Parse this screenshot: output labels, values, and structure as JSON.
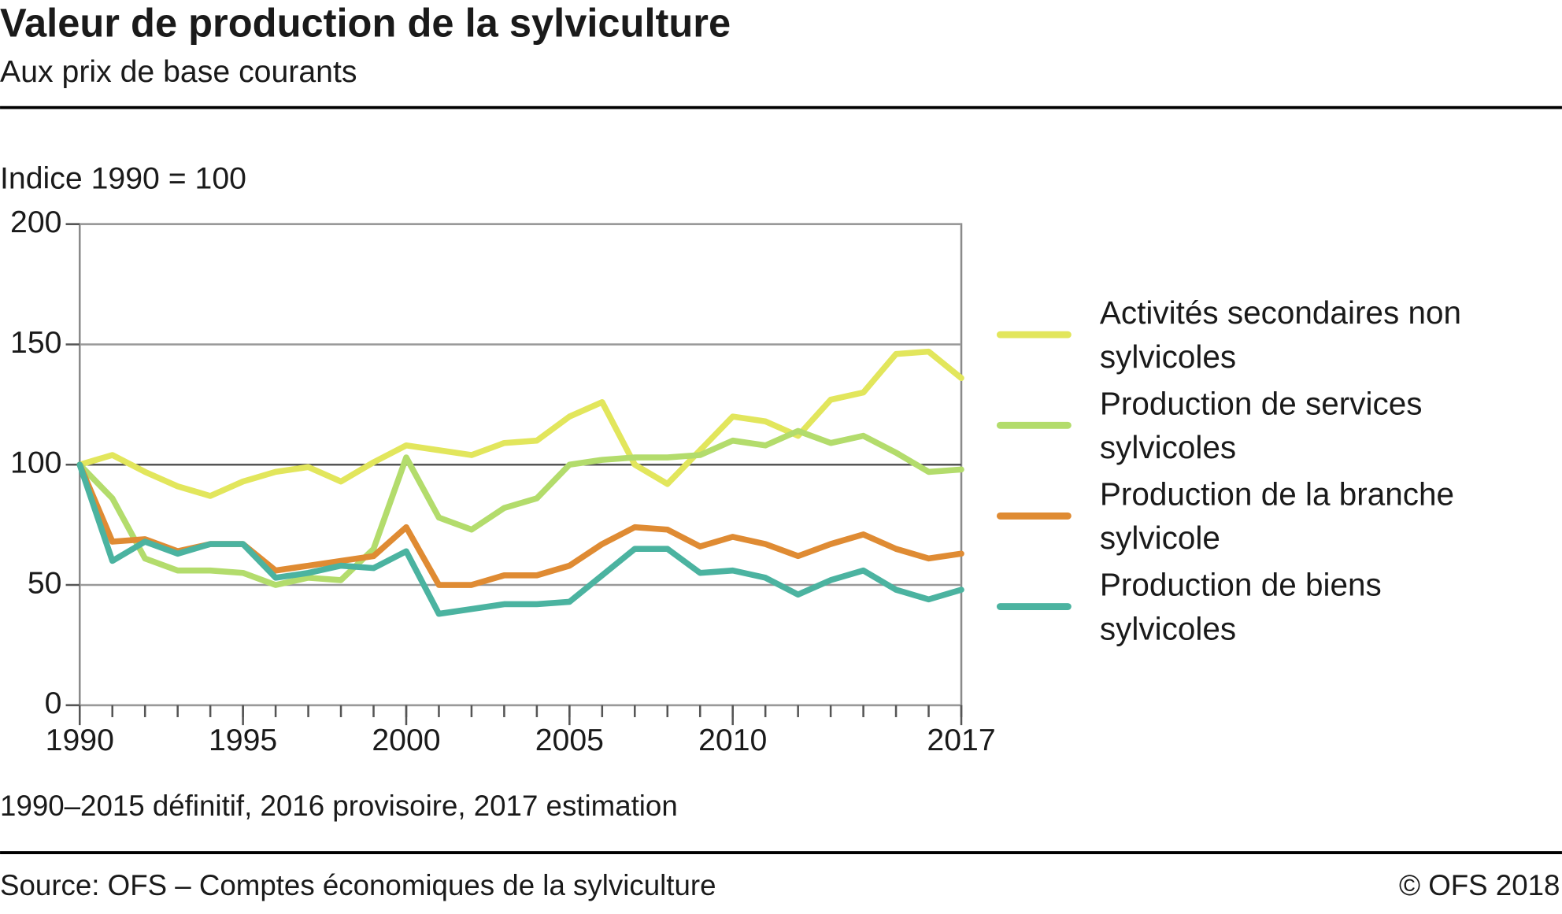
{
  "chart_data": {
    "type": "line",
    "title": "Valeur de production de la sylviculture",
    "subtitle": "Aux prix de base courants",
    "y_label": "Indice 1990 = 100",
    "note": "1990–2015 définitif, 2016 provisoire, 2017 estimation",
    "source": "Source: OFS – Comptes économiques de la sylviculture",
    "copyright": "© OFS  2018",
    "x": [
      1990,
      1991,
      1992,
      1993,
      1994,
      1995,
      1996,
      1997,
      1998,
      1999,
      2000,
      2001,
      2002,
      2003,
      2004,
      2005,
      2006,
      2007,
      2008,
      2009,
      2010,
      2011,
      2012,
      2013,
      2014,
      2015,
      2016,
      2017
    ],
    "xlim": [
      1990,
      2017
    ],
    "xticks": [
      1990,
      1995,
      2000,
      2005,
      2010,
      2017
    ],
    "ylim": [
      0,
      200
    ],
    "yticks": [
      0,
      50,
      100,
      150,
      200
    ],
    "grid": true,
    "legend": "right",
    "series": [
      {
        "name": "Activités secondaires non sylvicoles",
        "color": "#e2e65c",
        "values": [
          100,
          104,
          97,
          91,
          87,
          93,
          97,
          99,
          93,
          101,
          108,
          106,
          104,
          109,
          110,
          120,
          126,
          100,
          92,
          106,
          120,
          118,
          112,
          127,
          130,
          146,
          147,
          136
        ]
      },
      {
        "name": "Production de services sylvicoles",
        "color": "#b3dc6c",
        "values": [
          100,
          86,
          61,
          56,
          56,
          55,
          50,
          53,
          52,
          65,
          103,
          78,
          73,
          82,
          86,
          100,
          102,
          103,
          103,
          104,
          110,
          108,
          114,
          109,
          112,
          105,
          97,
          98
        ]
      },
      {
        "name": "Production de la branche sylvicole",
        "color": "#df8b33",
        "values": [
          100,
          68,
          69,
          64,
          67,
          67,
          56,
          58,
          60,
          62,
          74,
          50,
          50,
          54,
          54,
          58,
          67,
          74,
          73,
          66,
          70,
          67,
          62,
          67,
          71,
          65,
          61,
          63
        ]
      },
      {
        "name": "Production de biens sylvicoles",
        "color": "#4bb3a0",
        "values": [
          100,
          60,
          68,
          63,
          67,
          67,
          53,
          55,
          58,
          57,
          64,
          38,
          40,
          42,
          42,
          43,
          54,
          65,
          65,
          55,
          56,
          53,
          46,
          52,
          56,
          48,
          44,
          48
        ]
      }
    ]
  }
}
